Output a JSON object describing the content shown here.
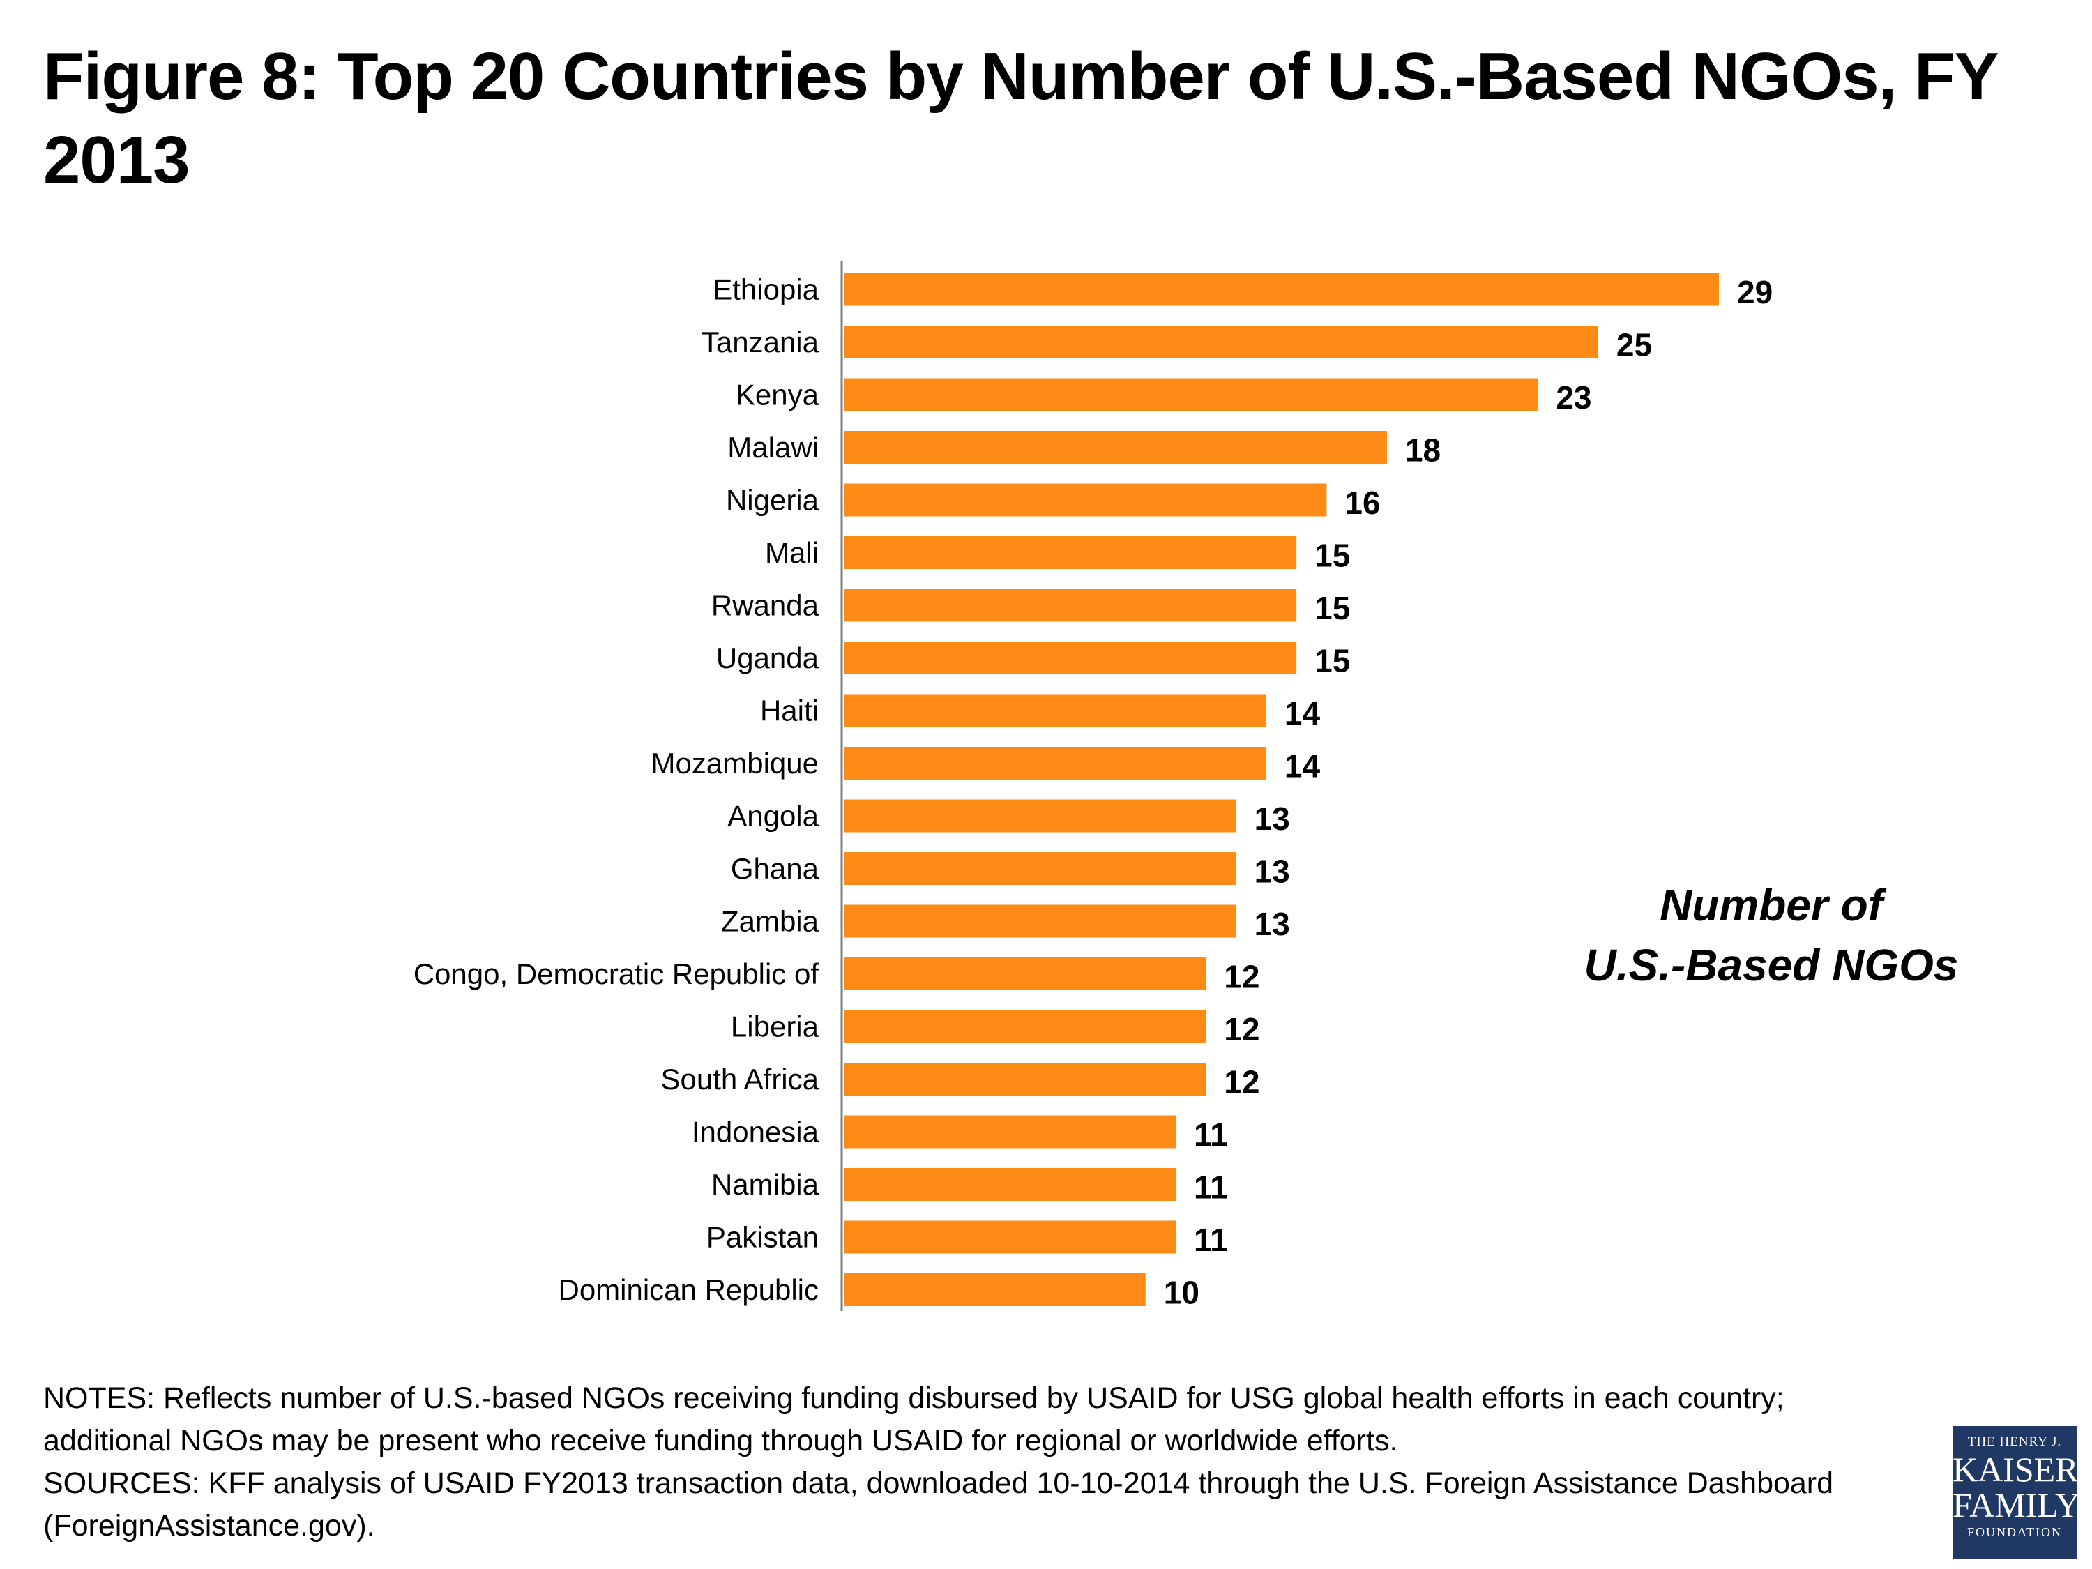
{
  "title": "Figure 8: Top 20 Countries by Number of U.S.-Based NGOs, FY 2013",
  "series_label": [
    "Number of",
    "U.S.-Based NGOs"
  ],
  "notes": [
    "NOTES: Reflects number of U.S.-based NGOs receiving funding disbursed  by USAID for USG global health efforts in each country;",
    "additional NGOs may be present who receive funding through USAID for regional or worldwide efforts.",
    "SOURCES: KFF analysis of  USAID FY2013 transaction data, downloaded 10-10-2014 through the U.S. Foreign Assistance Dashboard",
    "(ForeignAssistance.gov)."
  ],
  "logo": {
    "line1": "THE HENRY J.",
    "line2": "KAISER",
    "line3": "FAMILY",
    "line4": "FOUNDATION"
  },
  "colors": {
    "bar": "#fd8b16",
    "axis": "#7f7f7f",
    "text": "#000000",
    "logo_bg": "#1f3864"
  },
  "chart_data": {
    "type": "bar",
    "orientation": "horizontal",
    "title": "Figure 8: Top 20 Countries by Number of U.S.-Based NGOs, FY 2013",
    "xlabel": "",
    "ylabel": "",
    "xlim": [
      0,
      29
    ],
    "grid": false,
    "data_labels": true,
    "categories": [
      "Ethiopia",
      "Tanzania",
      "Kenya",
      "Malawi",
      "Nigeria",
      "Mali",
      "Rwanda",
      "Uganda",
      "Haiti",
      "Mozambique",
      "Angola",
      "Ghana",
      "Zambia",
      "Congo, Democratic Republic of",
      "Liberia",
      "South Africa",
      "Indonesia",
      "Namibia",
      "Pakistan",
      "Dominican Republic"
    ],
    "values": [
      29,
      25,
      23,
      18,
      16,
      15,
      15,
      15,
      14,
      14,
      13,
      13,
      13,
      12,
      12,
      12,
      11,
      11,
      11,
      10
    ]
  }
}
